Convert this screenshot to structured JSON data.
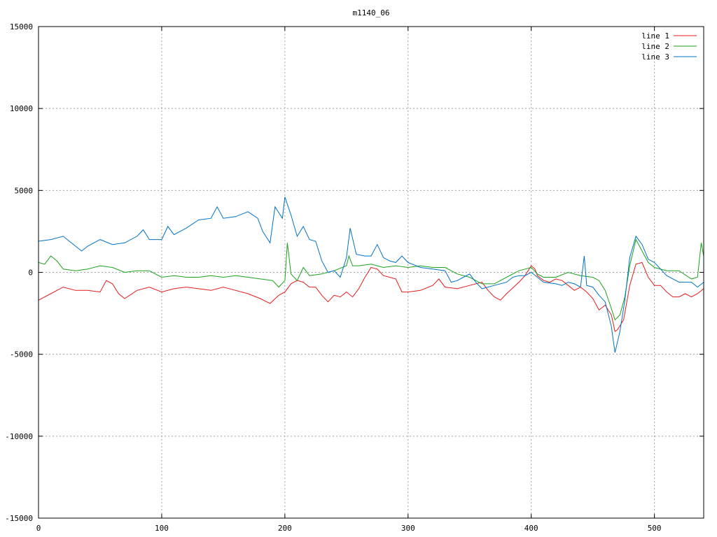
{
  "chart_data": {
    "type": "line",
    "title": "m1140_06",
    "xlabel": "",
    "ylabel": "",
    "xlim": [
      0,
      540
    ],
    "ylim": [
      -15000,
      15000
    ],
    "x_ticks": [
      0,
      100,
      200,
      300,
      400,
      500
    ],
    "y_ticks": [
      -15000,
      -10000,
      -5000,
      0,
      5000,
      10000,
      15000
    ],
    "grid": true,
    "legend_position": "top-right",
    "series": [
      {
        "name": "line 1",
        "color": "#e41a1c",
        "points": [
          [
            0,
            -1700
          ],
          [
            10,
            -1300
          ],
          [
            20,
            -900
          ],
          [
            30,
            -1100
          ],
          [
            40,
            -1100
          ],
          [
            50,
            -1200
          ],
          [
            55,
            -500
          ],
          [
            60,
            -700
          ],
          [
            65,
            -1300
          ],
          [
            70,
            -1600
          ],
          [
            80,
            -1100
          ],
          [
            90,
            -900
          ],
          [
            100,
            -1200
          ],
          [
            110,
            -1000
          ],
          [
            120,
            -900
          ],
          [
            130,
            -1000
          ],
          [
            140,
            -1100
          ],
          [
            150,
            -900
          ],
          [
            160,
            -1100
          ],
          [
            170,
            -1300
          ],
          [
            180,
            -1600
          ],
          [
            188,
            -1900
          ],
          [
            195,
            -1400
          ],
          [
            200,
            -1200
          ],
          [
            205,
            -700
          ],
          [
            210,
            -500
          ],
          [
            215,
            -600
          ],
          [
            220,
            -900
          ],
          [
            225,
            -900
          ],
          [
            230,
            -1400
          ],
          [
            235,
            -1800
          ],
          [
            240,
            -1400
          ],
          [
            245,
            -1500
          ],
          [
            250,
            -1200
          ],
          [
            255,
            -1500
          ],
          [
            260,
            -1000
          ],
          [
            265,
            -300
          ],
          [
            270,
            300
          ],
          [
            275,
            200
          ],
          [
            280,
            -200
          ],
          [
            285,
            -300
          ],
          [
            290,
            -400
          ],
          [
            295,
            -1200
          ],
          [
            300,
            -1200
          ],
          [
            310,
            -1100
          ],
          [
            320,
            -800
          ],
          [
            325,
            -400
          ],
          [
            330,
            -900
          ],
          [
            340,
            -1000
          ],
          [
            350,
            -800
          ],
          [
            360,
            -600
          ],
          [
            365,
            -1100
          ],
          [
            370,
            -1500
          ],
          [
            375,
            -1700
          ],
          [
            380,
            -1300
          ],
          [
            390,
            -600
          ],
          [
            395,
            -200
          ],
          [
            400,
            400
          ],
          [
            403,
            200
          ],
          [
            405,
            -200
          ],
          [
            410,
            -500
          ],
          [
            415,
            -600
          ],
          [
            420,
            -400
          ],
          [
            425,
            -500
          ],
          [
            430,
            -800
          ],
          [
            435,
            -1100
          ],
          [
            440,
            -900
          ],
          [
            445,
            -1200
          ],
          [
            450,
            -1600
          ],
          [
            455,
            -2300
          ],
          [
            460,
            -2000
          ],
          [
            465,
            -2600
          ],
          [
            468,
            -3600
          ],
          [
            470,
            -3500
          ],
          [
            475,
            -2900
          ],
          [
            480,
            -800
          ],
          [
            485,
            500
          ],
          [
            490,
            600
          ],
          [
            495,
            -300
          ],
          [
            500,
            -800
          ],
          [
            505,
            -800
          ],
          [
            510,
            -1200
          ],
          [
            515,
            -1500
          ],
          [
            520,
            -1500
          ],
          [
            525,
            -1300
          ],
          [
            530,
            -1500
          ],
          [
            535,
            -1300
          ],
          [
            540,
            -1000
          ]
        ]
      },
      {
        "name": "line 2",
        "color": "#1aa11a",
        "points": [
          [
            0,
            600
          ],
          [
            5,
            500
          ],
          [
            10,
            1000
          ],
          [
            15,
            700
          ],
          [
            20,
            200
          ],
          [
            30,
            100
          ],
          [
            40,
            200
          ],
          [
            50,
            400
          ],
          [
            60,
            300
          ],
          [
            70,
            0
          ],
          [
            80,
            100
          ],
          [
            90,
            100
          ],
          [
            100,
            -300
          ],
          [
            110,
            -200
          ],
          [
            120,
            -300
          ],
          [
            130,
            -300
          ],
          [
            140,
            -200
          ],
          [
            150,
            -300
          ],
          [
            160,
            -200
          ],
          [
            170,
            -300
          ],
          [
            180,
            -400
          ],
          [
            190,
            -500
          ],
          [
            195,
            -900
          ],
          [
            200,
            -500
          ],
          [
            202,
            1800
          ],
          [
            205,
            -100
          ],
          [
            210,
            -500
          ],
          [
            215,
            300
          ],
          [
            220,
            -200
          ],
          [
            230,
            -100
          ],
          [
            240,
            100
          ],
          [
            250,
            400
          ],
          [
            252,
            1000
          ],
          [
            255,
            400
          ],
          [
            260,
            400
          ],
          [
            270,
            500
          ],
          [
            280,
            300
          ],
          [
            290,
            400
          ],
          [
            300,
            300
          ],
          [
            310,
            400
          ],
          [
            320,
            300
          ],
          [
            330,
            300
          ],
          [
            340,
            -100
          ],
          [
            350,
            -300
          ],
          [
            360,
            -700
          ],
          [
            370,
            -700
          ],
          [
            380,
            -300
          ],
          [
            390,
            100
          ],
          [
            400,
            300
          ],
          [
            405,
            -100
          ],
          [
            410,
            -300
          ],
          [
            420,
            -300
          ],
          [
            430,
            0
          ],
          [
            440,
            -200
          ],
          [
            450,
            -300
          ],
          [
            455,
            -500
          ],
          [
            460,
            -1100
          ],
          [
            465,
            -2200
          ],
          [
            468,
            -2900
          ],
          [
            472,
            -2600
          ],
          [
            476,
            -1500
          ],
          [
            480,
            400
          ],
          [
            485,
            2000
          ],
          [
            490,
            1300
          ],
          [
            495,
            600
          ],
          [
            500,
            300
          ],
          [
            510,
            100
          ],
          [
            520,
            100
          ],
          [
            530,
            -400
          ],
          [
            535,
            -300
          ],
          [
            538,
            1800
          ],
          [
            540,
            1000
          ]
        ]
      },
      {
        "name": "line 3",
        "color": "#0072c6",
        "points": [
          [
            0,
            1900
          ],
          [
            10,
            2000
          ],
          [
            20,
            2200
          ],
          [
            30,
            1600
          ],
          [
            35,
            1300
          ],
          [
            40,
            1600
          ],
          [
            50,
            2000
          ],
          [
            60,
            1700
          ],
          [
            70,
            1800
          ],
          [
            80,
            2200
          ],
          [
            85,
            2600
          ],
          [
            90,
            2000
          ],
          [
            100,
            2000
          ],
          [
            105,
            2800
          ],
          [
            110,
            2300
          ],
          [
            120,
            2700
          ],
          [
            130,
            3200
          ],
          [
            140,
            3300
          ],
          [
            145,
            4000
          ],
          [
            150,
            3300
          ],
          [
            160,
            3400
          ],
          [
            170,
            3700
          ],
          [
            178,
            3300
          ],
          [
            182,
            2500
          ],
          [
            188,
            1800
          ],
          [
            192,
            4000
          ],
          [
            198,
            3300
          ],
          [
            200,
            4600
          ],
          [
            205,
            3500
          ],
          [
            210,
            2200
          ],
          [
            215,
            2800
          ],
          [
            220,
            2000
          ],
          [
            225,
            1900
          ],
          [
            230,
            700
          ],
          [
            235,
            0
          ],
          [
            240,
            100
          ],
          [
            245,
            -300
          ],
          [
            250,
            900
          ],
          [
            253,
            2700
          ],
          [
            258,
            1100
          ],
          [
            265,
            1000
          ],
          [
            270,
            1000
          ],
          [
            275,
            1700
          ],
          [
            280,
            900
          ],
          [
            285,
            700
          ],
          [
            290,
            600
          ],
          [
            295,
            1000
          ],
          [
            300,
            600
          ],
          [
            310,
            300
          ],
          [
            320,
            200
          ],
          [
            330,
            100
          ],
          [
            335,
            -600
          ],
          [
            340,
            -500
          ],
          [
            345,
            -300
          ],
          [
            350,
            -100
          ],
          [
            355,
            -600
          ],
          [
            360,
            -1000
          ],
          [
            370,
            -800
          ],
          [
            380,
            -600
          ],
          [
            385,
            -300
          ],
          [
            390,
            -200
          ],
          [
            395,
            -200
          ],
          [
            400,
            0
          ],
          [
            405,
            -300
          ],
          [
            410,
            -600
          ],
          [
            420,
            -700
          ],
          [
            425,
            -800
          ],
          [
            430,
            -600
          ],
          [
            435,
            -700
          ],
          [
            440,
            -900
          ],
          [
            443,
            1000
          ],
          [
            445,
            -800
          ],
          [
            450,
            -900
          ],
          [
            455,
            -1400
          ],
          [
            460,
            -1800
          ],
          [
            465,
            -3300
          ],
          [
            468,
            -4900
          ],
          [
            472,
            -3600
          ],
          [
            476,
            -1700
          ],
          [
            480,
            900
          ],
          [
            485,
            2200
          ],
          [
            490,
            1700
          ],
          [
            495,
            800
          ],
          [
            500,
            600
          ],
          [
            505,
            200
          ],
          [
            510,
            -200
          ],
          [
            520,
            -600
          ],
          [
            530,
            -600
          ],
          [
            535,
            -900
          ],
          [
            540,
            -600
          ]
        ]
      }
    ]
  }
}
